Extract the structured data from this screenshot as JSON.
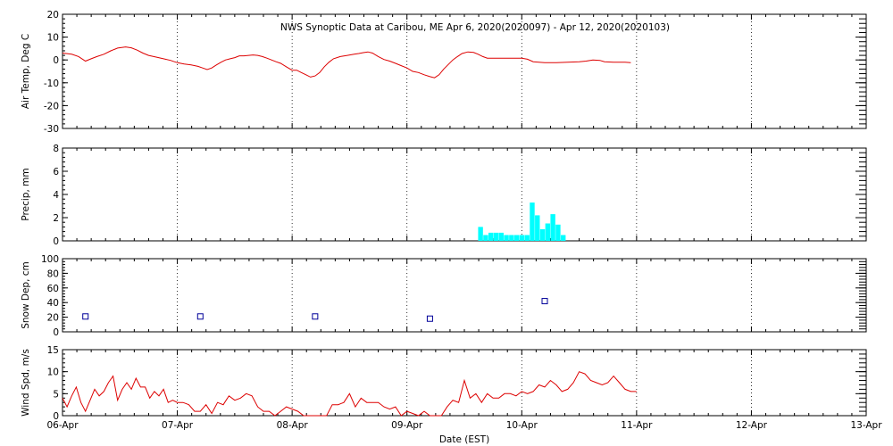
{
  "title": "NWS Synoptic Data at Caribou, ME   Apr  6, 2020(2020097) - Apr 12, 2020(2020103)",
  "xlabel": "Date (EST)",
  "x_ticks": [
    "06-Apr",
    "07-Apr",
    "08-Apr",
    "09-Apr",
    "10-Apr",
    "11-Apr",
    "12-Apr",
    "13-Apr"
  ],
  "colors": {
    "line": "#dd0000",
    "bar": "#00ffff",
    "marker": "#000099",
    "axis": "#000000"
  },
  "chart_data": [
    {
      "type": "line",
      "ylabel": "Air Temp, Deg C",
      "ylim": [
        -30,
        20
      ],
      "yticks": [
        "20",
        "10",
        "0",
        "-10",
        "-20",
        "-30"
      ],
      "grid": "dotted vertical at day boundaries",
      "x_unit": "days since 06-Apr 00:00 EST",
      "series": [
        {
          "points": [
            [
              0,
              3
            ],
            [
              0.08,
              2.5
            ],
            [
              0.14,
              1.5
            ],
            [
              0.2,
              -0.5
            ],
            [
              0.25,
              0.5
            ],
            [
              0.3,
              1.5
            ],
            [
              0.36,
              2.5
            ],
            [
              0.42,
              4
            ],
            [
              0.48,
              5.2
            ],
            [
              0.55,
              5.7
            ],
            [
              0.6,
              5.3
            ],
            [
              0.65,
              4.3
            ],
            [
              0.7,
              3
            ],
            [
              0.75,
              2
            ],
            [
              0.82,
              1.2
            ],
            [
              0.88,
              0.5
            ],
            [
              0.94,
              -0.2
            ],
            [
              1.0,
              -1.2
            ],
            [
              1.06,
              -1.8
            ],
            [
              1.12,
              -2.2
            ],
            [
              1.18,
              -2.8
            ],
            [
              1.22,
              -3.5
            ],
            [
              1.26,
              -4.2
            ],
            [
              1.3,
              -3.5
            ],
            [
              1.34,
              -2.2
            ],
            [
              1.38,
              -1
            ],
            [
              1.42,
              0
            ],
            [
              1.46,
              0.5
            ],
            [
              1.5,
              1
            ],
            [
              1.54,
              1.8
            ],
            [
              1.58,
              1.8
            ],
            [
              1.62,
              2
            ],
            [
              1.66,
              2.2
            ],
            [
              1.7,
              2
            ],
            [
              1.74,
              1.5
            ],
            [
              1.78,
              0.8
            ],
            [
              1.82,
              0
            ],
            [
              1.86,
              -0.8
            ],
            [
              1.9,
              -1.5
            ],
            [
              1.95,
              -3
            ],
            [
              2.0,
              -4.5
            ],
            [
              2.04,
              -4.5
            ],
            [
              2.08,
              -5.5
            ],
            [
              2.12,
              -6.5
            ],
            [
              2.16,
              -7.5
            ],
            [
              2.2,
              -7
            ],
            [
              2.24,
              -5.5
            ],
            [
              2.28,
              -3
            ],
            [
              2.32,
              -1
            ],
            [
              2.36,
              0.5
            ],
            [
              2.42,
              1.5
            ],
            [
              2.48,
              2
            ],
            [
              2.54,
              2.5
            ],
            [
              2.58,
              2.8
            ],
            [
              2.62,
              3.2
            ],
            [
              2.66,
              3.5
            ],
            [
              2.7,
              3
            ],
            [
              2.75,
              1.5
            ],
            [
              2.8,
              0.2
            ],
            [
              2.85,
              -0.5
            ],
            [
              2.9,
              -1.5
            ],
            [
              2.95,
              -2.5
            ],
            [
              3.0,
              -3.5
            ],
            [
              3.05,
              -5
            ],
            [
              3.1,
              -5.5
            ],
            [
              3.15,
              -6.5
            ],
            [
              3.2,
              -7.3
            ],
            [
              3.24,
              -7.8
            ],
            [
              3.28,
              -6.5
            ],
            [
              3.32,
              -4
            ],
            [
              3.36,
              -2
            ],
            [
              3.4,
              0
            ],
            [
              3.44,
              1.5
            ],
            [
              3.48,
              2.8
            ],
            [
              3.53,
              3.5
            ],
            [
              3.58,
              3.3
            ],
            [
              3.62,
              2.5
            ],
            [
              3.66,
              1.5
            ],
            [
              3.7,
              0.8
            ],
            [
              3.8,
              0.8
            ],
            [
              3.9,
              0.8
            ],
            [
              4.0,
              0.8
            ],
            [
              4.05,
              0.3
            ],
            [
              4.1,
              -0.8
            ],
            [
              4.2,
              -1.2
            ],
            [
              4.3,
              -1.2
            ],
            [
              4.4,
              -1
            ],
            [
              4.5,
              -0.8
            ],
            [
              4.56,
              -0.5
            ],
            [
              4.62,
              0
            ],
            [
              4.68,
              -0.2
            ],
            [
              4.72,
              -0.8
            ],
            [
              4.8,
              -1
            ],
            [
              4.9,
              -1
            ],
            [
              4.95,
              -1.2
            ]
          ]
        }
      ]
    },
    {
      "type": "bar",
      "ylabel": "Precip, mm",
      "ylim": [
        0,
        8
      ],
      "yticks": [
        "8",
        "6",
        "4",
        "2",
        "0"
      ],
      "x_unit": "days since 06-Apr 00:00 EST",
      "bar_width_days": 0.042,
      "bars": [
        [
          3.62,
          1.2
        ],
        [
          3.665,
          0.5
        ],
        [
          3.71,
          0.7
        ],
        [
          3.755,
          0.7
        ],
        [
          3.8,
          0.7
        ],
        [
          3.845,
          0.5
        ],
        [
          3.89,
          0.5
        ],
        [
          3.935,
          0.5
        ],
        [
          3.98,
          0.5
        ],
        [
          4.025,
          0.5
        ],
        [
          4.07,
          3.3
        ],
        [
          4.115,
          2.2
        ],
        [
          4.16,
          1
        ],
        [
          4.205,
          1.5
        ],
        [
          4.25,
          2.3
        ],
        [
          4.295,
          1.4
        ],
        [
          4.34,
          0.5
        ]
      ]
    },
    {
      "type": "scatter",
      "ylabel": "Snow Dep, cm",
      "ylim": [
        0,
        100
      ],
      "yticks": [
        "100",
        "80",
        "60",
        "40",
        "20",
        "0"
      ],
      "x_unit": "days since 06-Apr 00:00 EST",
      "marker": "square",
      "points": [
        [
          0.2,
          21
        ],
        [
          1.2,
          21
        ],
        [
          2.2,
          21
        ],
        [
          3.2,
          18
        ],
        [
          4.2,
          42
        ]
      ]
    },
    {
      "type": "line",
      "ylabel": "Wind Spd, m/s",
      "ylim": [
        0,
        15
      ],
      "yticks": [
        "15",
        "10",
        "5",
        "0"
      ],
      "x_unit": "days since 06-Apr 00:00 EST",
      "series": [
        {
          "points": [
            [
              0,
              4
            ],
            [
              0.04,
              2
            ],
            [
              0.08,
              4.5
            ],
            [
              0.12,
              6.5
            ],
            [
              0.16,
              3
            ],
            [
              0.2,
              1
            ],
            [
              0.24,
              3.5
            ],
            [
              0.28,
              6
            ],
            [
              0.32,
              4.5
            ],
            [
              0.36,
              5.5
            ],
            [
              0.4,
              7.5
            ],
            [
              0.44,
              9
            ],
            [
              0.48,
              3.5
            ],
            [
              0.52,
              6
            ],
            [
              0.56,
              7.5
            ],
            [
              0.6,
              6
            ],
            [
              0.64,
              8.5
            ],
            [
              0.68,
              6.5
            ],
            [
              0.72,
              6.5
            ],
            [
              0.76,
              4
            ],
            [
              0.8,
              5.5
            ],
            [
              0.84,
              4.5
            ],
            [
              0.88,
              6
            ],
            [
              0.92,
              3
            ],
            [
              0.96,
              3.5
            ],
            [
              1.0,
              3
            ],
            [
              1.05,
              3
            ],
            [
              1.1,
              2.5
            ],
            [
              1.15,
              1
            ],
            [
              1.2,
              1
            ],
            [
              1.25,
              2.5
            ],
            [
              1.3,
              0.5
            ],
            [
              1.35,
              3
            ],
            [
              1.4,
              2.5
            ],
            [
              1.45,
              4.5
            ],
            [
              1.5,
              3.5
            ],
            [
              1.55,
              4
            ],
            [
              1.6,
              5
            ],
            [
              1.65,
              4.5
            ],
            [
              1.7,
              2
            ],
            [
              1.75,
              1
            ],
            [
              1.8,
              1
            ],
            [
              1.85,
              0
            ],
            [
              1.9,
              1
            ],
            [
              1.95,
              2
            ],
            [
              2.0,
              1.5
            ],
            [
              2.05,
              1
            ],
            [
              2.1,
              0
            ],
            [
              2.15,
              0
            ],
            [
              2.2,
              0
            ],
            [
              2.25,
              0
            ],
            [
              2.3,
              0
            ],
            [
              2.35,
              2.5
            ],
            [
              2.4,
              2.5
            ],
            [
              2.45,
              3
            ],
            [
              2.5,
              5
            ],
            [
              2.55,
              2
            ],
            [
              2.6,
              4
            ],
            [
              2.65,
              3
            ],
            [
              2.7,
              3
            ],
            [
              2.75,
              3
            ],
            [
              2.8,
              2
            ],
            [
              2.85,
              1.5
            ],
            [
              2.9,
              2
            ],
            [
              2.95,
              0
            ],
            [
              3.0,
              1
            ],
            [
              3.05,
              0.5
            ],
            [
              3.1,
              0
            ],
            [
              3.15,
              1
            ],
            [
              3.2,
              0
            ],
            [
              3.25,
              0
            ],
            [
              3.3,
              0
            ],
            [
              3.35,
              2
            ],
            [
              3.4,
              3.5
            ],
            [
              3.45,
              3
            ],
            [
              3.5,
              8
            ],
            [
              3.55,
              4
            ],
            [
              3.6,
              5
            ],
            [
              3.65,
              3
            ],
            [
              3.7,
              5
            ],
            [
              3.75,
              4
            ],
            [
              3.8,
              4
            ],
            [
              3.85,
              5
            ],
            [
              3.9,
              5
            ],
            [
              3.95,
              4.5
            ],
            [
              4.0,
              5.5
            ],
            [
              4.05,
              5
            ],
            [
              4.1,
              5.5
            ],
            [
              4.15,
              7
            ],
            [
              4.2,
              6.5
            ],
            [
              4.25,
              8
            ],
            [
              4.3,
              7
            ],
            [
              4.35,
              5.5
            ],
            [
              4.4,
              6
            ],
            [
              4.45,
              7.5
            ],
            [
              4.5,
              10
            ],
            [
              4.55,
              9.5
            ],
            [
              4.6,
              8
            ],
            [
              4.65,
              7.5
            ],
            [
              4.7,
              7
            ],
            [
              4.75,
              7.5
            ],
            [
              4.8,
              9
            ],
            [
              4.85,
              7.5
            ],
            [
              4.9,
              6
            ],
            [
              4.95,
              5.5
            ],
            [
              5.0,
              5.5
            ]
          ]
        }
      ]
    }
  ]
}
